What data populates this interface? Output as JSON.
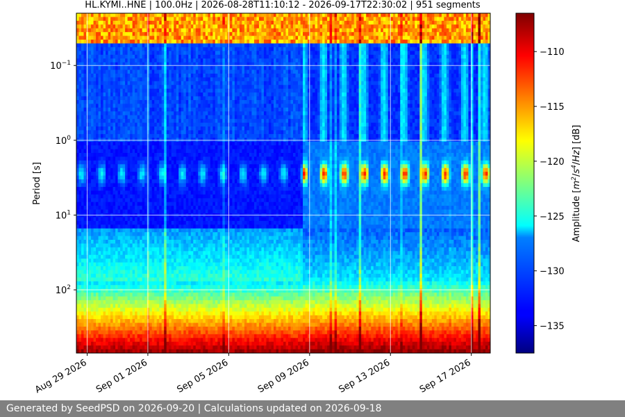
{
  "chart_data": {
    "type": "heatmap",
    "title": "HL.KYMI..HNE | 100.0Hz | 2026-08-28T11:10:12 - 2026-09-17T22:30:02 | 951 segments",
    "x_range": [
      "2026-08-28T11:10:12",
      "2026-09-17T22:30:02"
    ],
    "x_ticks": [
      "Aug 29 2026",
      "Sep 01 2026",
      "Sep 05 2026",
      "Sep 09 2026",
      "Sep 13 2026",
      "Sep 17 2026"
    ],
    "ylabel": "Period [s]",
    "y_scale": "log",
    "y_inverted": true,
    "y_range": [
      0.02,
      700
    ],
    "y_ticks": [
      {
        "value": 0.1,
        "base": "10",
        "exp": "−1"
      },
      {
        "value": 1,
        "base": "10",
        "exp": "0"
      },
      {
        "value": 10,
        "base": "10",
        "exp": "1"
      },
      {
        "value": 100,
        "base": "10",
        "exp": "2"
      }
    ],
    "grid": true,
    "colormap": "jet",
    "colorbar": {
      "label": "Amplitude [m2/s4/Hz] [dB]",
      "label_parts": [
        "Amplitude [",
        "m",
        "2",
        "/",
        "s",
        "4",
        "/",
        "Hz",
        "] [dB]"
      ],
      "range": [
        -137.5,
        -106.5
      ],
      "ticks": [
        -110,
        -115,
        -120,
        -125,
        -130,
        -135
      ]
    }
  },
  "footer": {
    "text": "Generated by SeedPSD on 2026-09-20 | Calculations updated on 2026-09-18"
  }
}
